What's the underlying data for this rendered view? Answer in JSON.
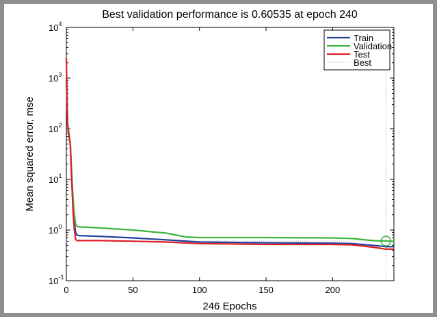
{
  "chart_data": {
    "type": "line",
    "title": "Best validation performance is 0.60535 at epoch 240",
    "xlabel": "246 Epochs",
    "ylabel": "Mean squared error, mse",
    "xlim": [
      0,
      246
    ],
    "ylim": [
      0.1,
      10000
    ],
    "yscale": "log",
    "grid": false,
    "legend_position": "top-right",
    "x_ticks": [
      0,
      50,
      100,
      150,
      200
    ],
    "y_ticks": [
      {
        "value": 0.1,
        "base": "10",
        "exp": "-1"
      },
      {
        "value": 1,
        "base": "10",
        "exp": "0"
      },
      {
        "value": 10,
        "base": "10",
        "exp": "1"
      },
      {
        "value": 100,
        "base": "10",
        "exp": "2"
      },
      {
        "value": 1000,
        "base": "10",
        "exp": "3"
      },
      {
        "value": 10000,
        "base": "10",
        "exp": "4"
      }
    ],
    "best": {
      "epoch": 240,
      "value": 0.60535
    },
    "series": [
      {
        "name": "Train",
        "color": "#1f3f9a",
        "x": [
          0,
          1,
          2,
          3,
          4,
          5,
          6,
          7,
          8,
          9,
          25,
          50,
          75,
          100,
          150,
          200,
          215,
          230,
          240,
          246
        ],
        "y": [
          900,
          120,
          70,
          50,
          10,
          3,
          1.4,
          0.9,
          0.8,
          0.78,
          0.75,
          0.7,
          0.64,
          0.58,
          0.56,
          0.55,
          0.54,
          0.5,
          0.47,
          0.47
        ]
      },
      {
        "name": "Validation",
        "color": "#3cb43c",
        "x": [
          0,
          1,
          2,
          3,
          4,
          5,
          6,
          7,
          8,
          9,
          25,
          50,
          75,
          90,
          100,
          150,
          200,
          215,
          230,
          240,
          246
        ],
        "y": [
          1000,
          130,
          80,
          50,
          14,
          4.5,
          2,
          1.3,
          1.18,
          1.16,
          1.1,
          1.0,
          0.87,
          0.73,
          0.71,
          0.71,
          0.7,
          0.68,
          0.62,
          0.60535,
          0.6
        ]
      },
      {
        "name": "Test",
        "color": "#dd1f26",
        "x": [
          0,
          1,
          2,
          3,
          4,
          5,
          6,
          7,
          8,
          9,
          25,
          50,
          75,
          100,
          150,
          200,
          215,
          230,
          240,
          246
        ],
        "y": [
          2500,
          110,
          70,
          50,
          10,
          2.5,
          1.0,
          0.65,
          0.62,
          0.62,
          0.62,
          0.6,
          0.58,
          0.54,
          0.52,
          0.52,
          0.51,
          0.46,
          0.42,
          0.42
        ]
      },
      {
        "name": "Best",
        "color": "#a8a8a8",
        "style": "dotted"
      }
    ]
  }
}
